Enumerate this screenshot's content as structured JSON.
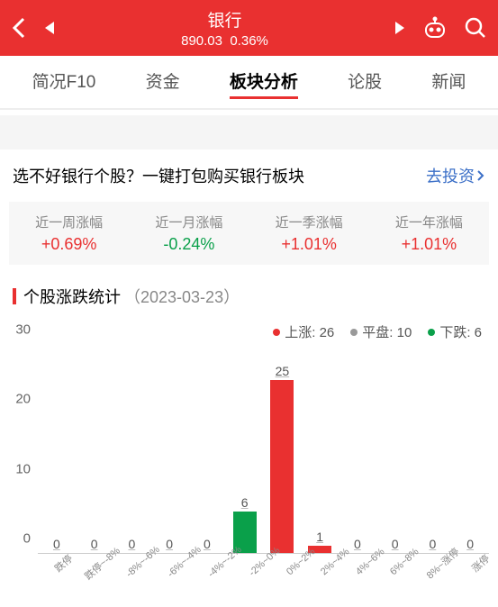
{
  "header": {
    "title": "银行",
    "price": "890.03",
    "change": "0.36%"
  },
  "tabs": [
    {
      "label": "简况F10",
      "active": false
    },
    {
      "label": "资金",
      "active": false
    },
    {
      "label": "板块分析",
      "active": true
    },
    {
      "label": "论股",
      "active": false
    },
    {
      "label": "新闻",
      "active": false
    }
  ],
  "banner": {
    "text": "选不好银行个股？一键打包购买银行板块",
    "link": "去投资"
  },
  "periods": [
    {
      "label": "近一周涨幅",
      "value": "+0.69%",
      "cls": "pos"
    },
    {
      "label": "近一月涨幅",
      "value": "-0.24%",
      "cls": "neg"
    },
    {
      "label": "近一季涨幅",
      "value": "+1.01%",
      "cls": "pos"
    },
    {
      "label": "近一年涨幅",
      "value": "+1.01%",
      "cls": "pos"
    }
  ],
  "section": {
    "title": "个股涨跌统计",
    "date": "（2023-03-23）"
  },
  "legend": [
    {
      "label": "上涨: 26",
      "color": "#e93030"
    },
    {
      "label": "平盘: 10",
      "color": "#999999"
    },
    {
      "label": "下跌: 6",
      "color": "#0aa04a"
    }
  ],
  "chart": {
    "type": "bar",
    "ylim": [
      0,
      30
    ],
    "yticks": [
      0,
      10,
      20,
      30
    ],
    "background_color": "#ffffff",
    "bars": [
      {
        "label": "跌停",
        "value": 0,
        "color": "#0aa04a"
      },
      {
        "label": "跌停~-8%",
        "value": 0,
        "color": "#0aa04a"
      },
      {
        "label": "-8%~-6%",
        "value": 0,
        "color": "#0aa04a"
      },
      {
        "label": "-6%~-4%",
        "value": 0,
        "color": "#0aa04a"
      },
      {
        "label": "-4%~-2%",
        "value": 0,
        "color": "#0aa04a"
      },
      {
        "label": "-2%~0%",
        "value": 6,
        "color": "#0aa04a"
      },
      {
        "label": "0%~2%",
        "value": 25,
        "color": "#e93030"
      },
      {
        "label": "2%~4%",
        "value": 1,
        "color": "#e93030"
      },
      {
        "label": "4%~6%",
        "value": 0,
        "color": "#e93030"
      },
      {
        "label": "6%~8%",
        "value": 0,
        "color": "#e93030"
      },
      {
        "label": "8%~涨停",
        "value": 0,
        "color": "#e93030"
      },
      {
        "label": "涨停",
        "value": 0,
        "color": "#e93030"
      }
    ]
  }
}
